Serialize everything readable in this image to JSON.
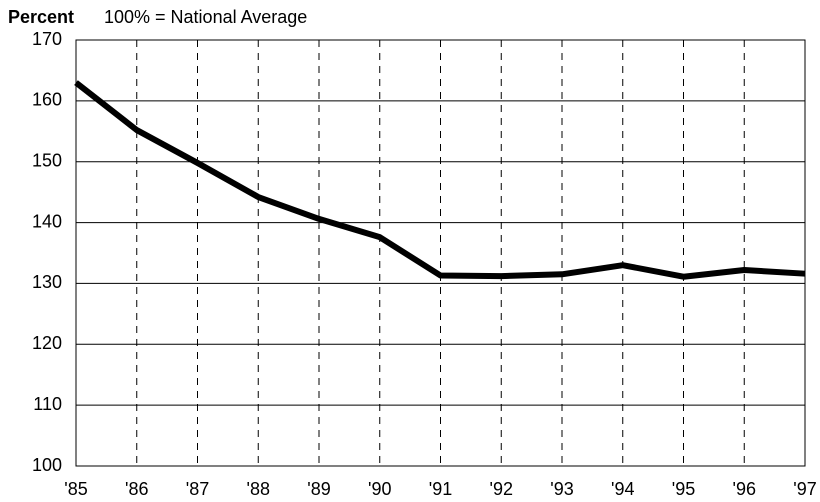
{
  "chart_data": {
    "type": "line",
    "y_label": "Percent",
    "subtitle": "100% = National Average",
    "categories": [
      "'85",
      "'86",
      "'87",
      "'88",
      "'89",
      "'90",
      "'91",
      "'92",
      "'93",
      "'94",
      "'95",
      "'96",
      "'97"
    ],
    "values": [
      163,
      155.2,
      149.8,
      144.2,
      140.6,
      137.6,
      131.3,
      131.2,
      131.5,
      133,
      131.1,
      132.2,
      131.6
    ],
    "color": "#000000",
    "ylim": [
      100,
      170
    ],
    "yticks": [
      100,
      110,
      120,
      130,
      140,
      150,
      160,
      170
    ],
    "grid": true
  }
}
